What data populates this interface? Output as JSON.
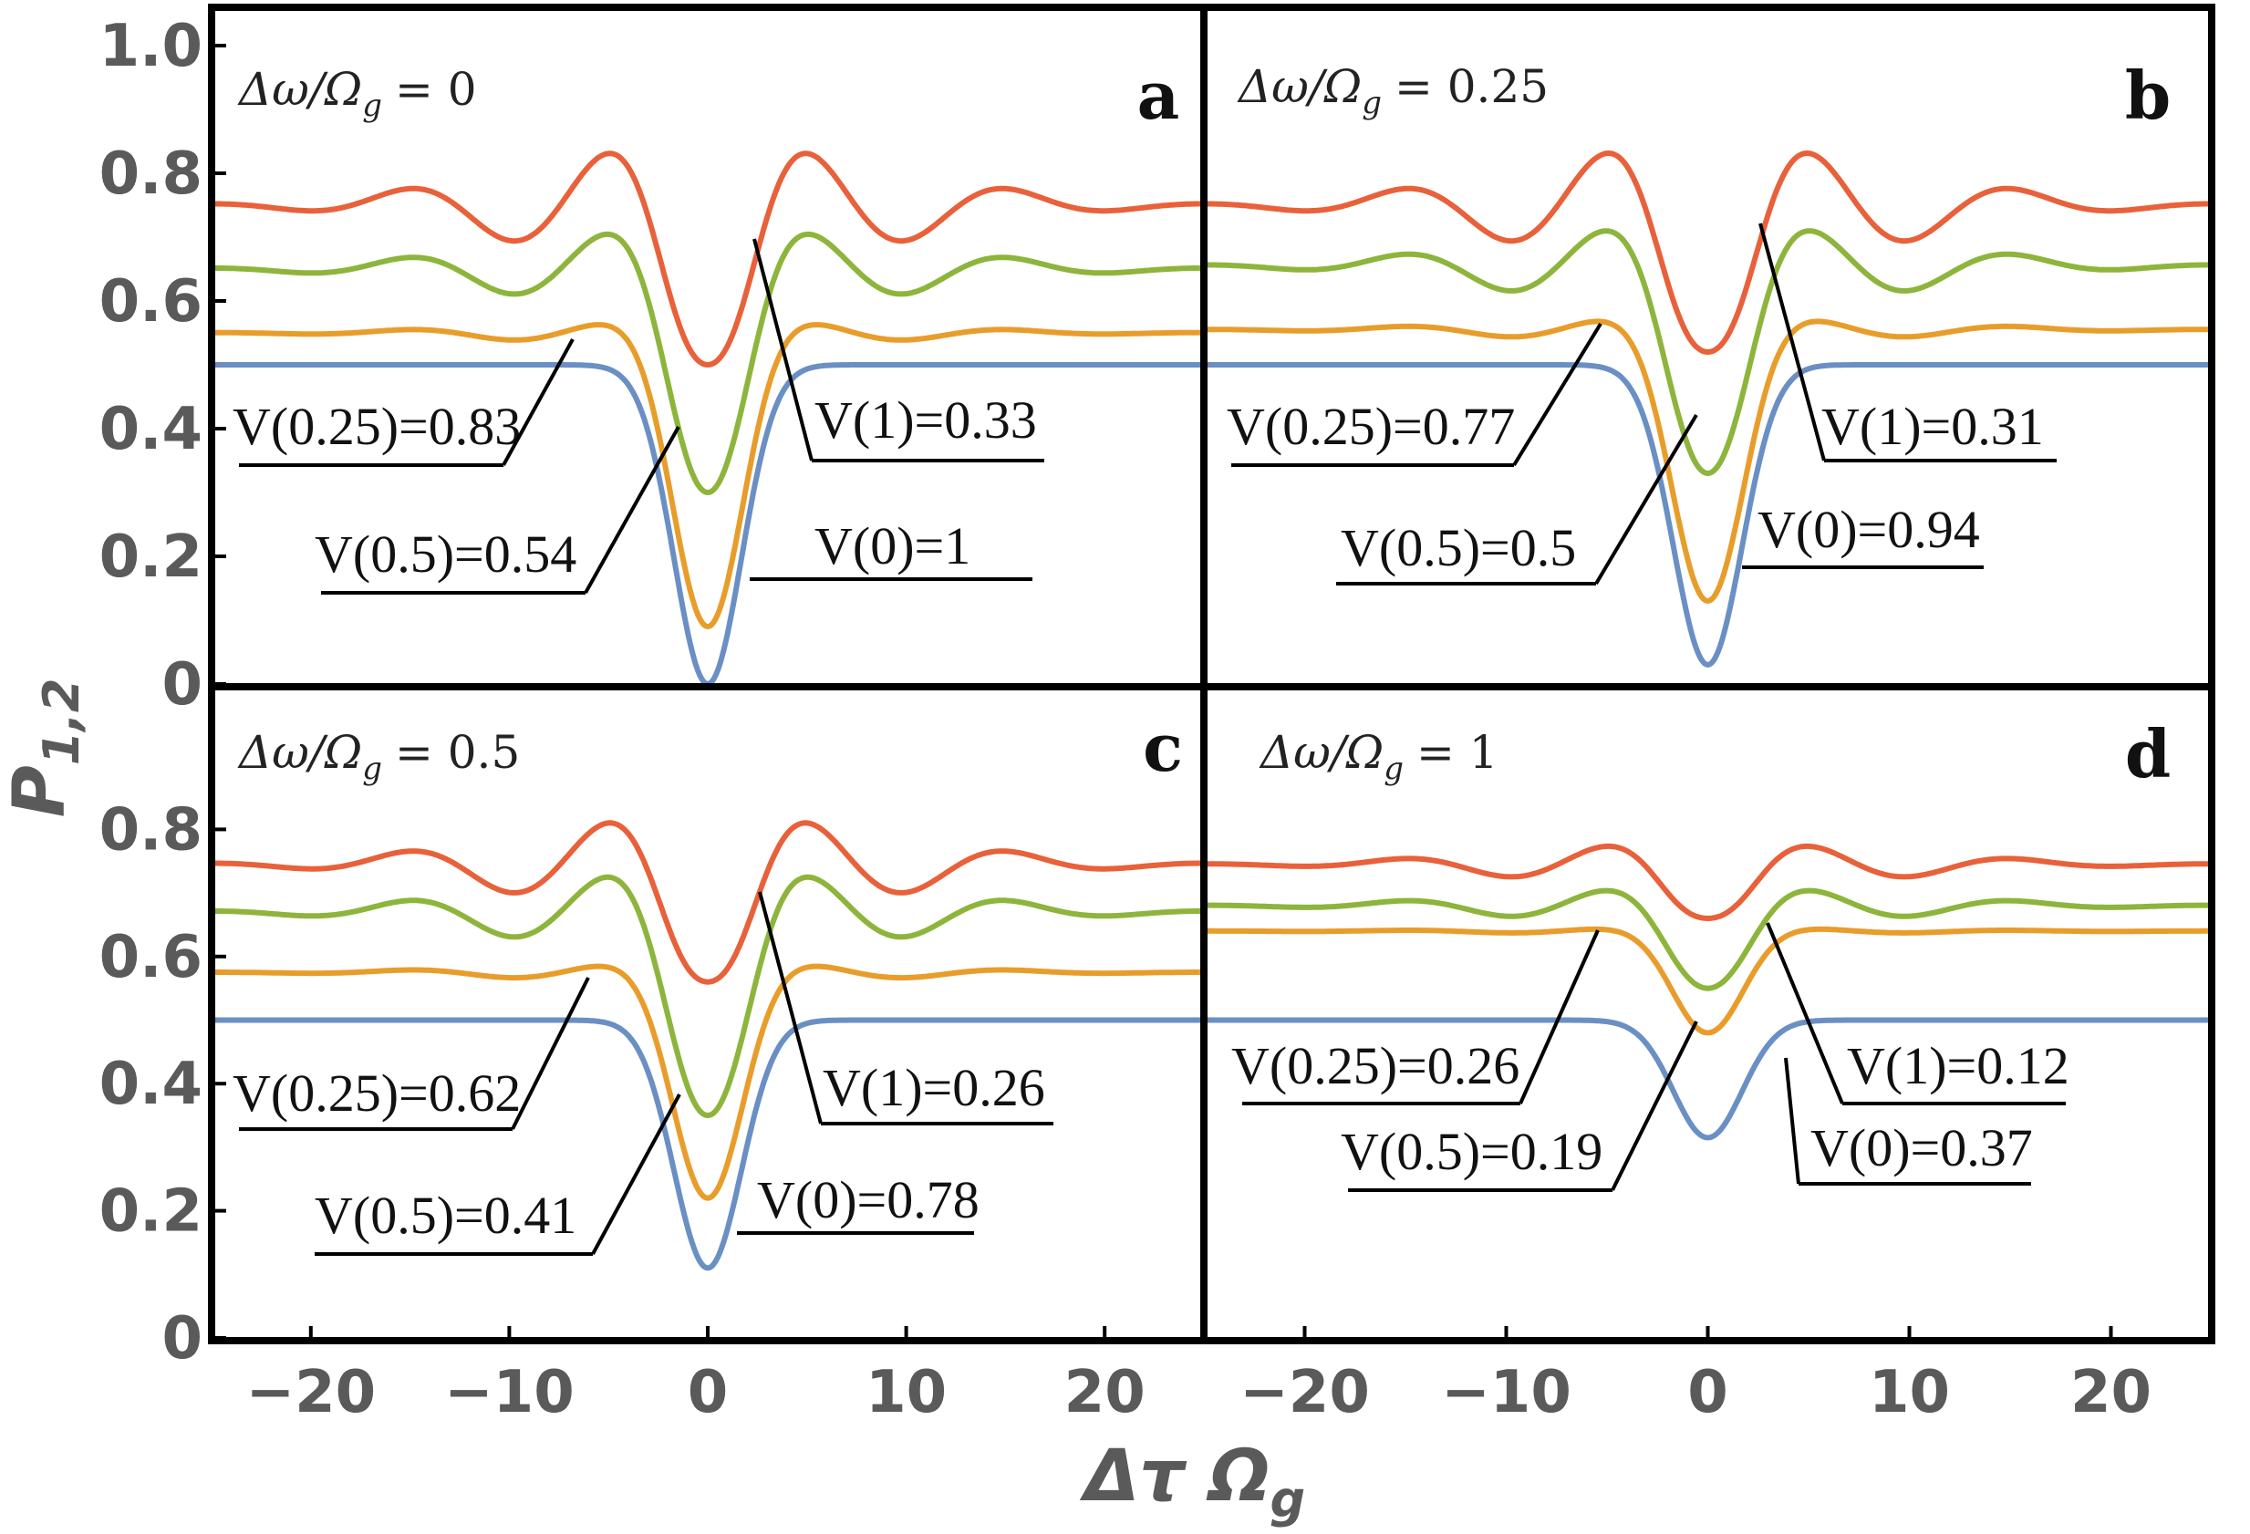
{
  "chart_data": {
    "type": "line",
    "layout": "2x2 panel grid",
    "y_axis_title": "P",
    "y_axis_subscript": "1,2",
    "x_axis_title": "Δτ Ω",
    "x_axis_subscript": "g",
    "xlim": [
      -25,
      25
    ],
    "ylim": [
      0,
      1.05
    ],
    "x_ticks": [
      -20,
      -10,
      0,
      10,
      20
    ],
    "x_tick_labels": [
      "−20",
      "−10",
      "0",
      "10",
      "20"
    ],
    "y_ticks_top": [
      0,
      0.2,
      0.4,
      0.6,
      0.8,
      1.0
    ],
    "y_tick_labels_top": [
      "0",
      "0.2",
      "0.4",
      "0.6",
      "0.8",
      "1.0"
    ],
    "y_ticks_bottom": [
      0,
      0.2,
      0.4,
      0.6,
      0.8
    ],
    "y_tick_labels_bottom": [
      "0",
      "0.2",
      "0.4",
      "0.6",
      "0.8"
    ],
    "series_colors": {
      "orange_red": "#e8613a",
      "green": "#8db53c",
      "orange": "#e89d2b",
      "blue": "#6a8fc4"
    },
    "panels": [
      {
        "letter": "a",
        "condition": "Δω/Ω",
        "condition_sub": "g",
        "condition_value": "= 0",
        "series": [
          {
            "name": "V(1)",
            "color": "#e8613a",
            "base": 0.75,
            "min": 0.5,
            "osc": 0.1
          },
          {
            "name": "V(0.5)",
            "color": "#8db53c",
            "base": 0.65,
            "min": 0.3,
            "osc": 0.07
          },
          {
            "name": "V(0.25)",
            "color": "#e89d2b",
            "base": 0.55,
            "min": 0.09,
            "osc": 0.02
          },
          {
            "name": "V(0)",
            "color": "#6a8fc4",
            "base": 0.5,
            "min": 0.0,
            "osc": 0.0
          }
        ],
        "labels": [
          {
            "text": "V(0.25)=0.83"
          },
          {
            "text": "V(0.5)=0.54"
          },
          {
            "text": "V(1)=0.33"
          },
          {
            "text": "V(0)=1"
          }
        ]
      },
      {
        "letter": "b",
        "condition": "Δω/Ω",
        "condition_sub": "g",
        "condition_value": "= 0.25",
        "series": [
          {
            "name": "V(1)",
            "color": "#e8613a",
            "base": 0.75,
            "min": 0.52,
            "osc": 0.1
          },
          {
            "name": "V(0.5)",
            "color": "#8db53c",
            "base": 0.655,
            "min": 0.33,
            "osc": 0.07
          },
          {
            "name": "V(0.25)",
            "color": "#e89d2b",
            "base": 0.555,
            "min": 0.13,
            "osc": 0.02
          },
          {
            "name": "V(0)",
            "color": "#6a8fc4",
            "base": 0.5,
            "min": 0.03,
            "osc": 0.0
          }
        ],
        "labels": [
          {
            "text": "V(0.25)=0.77"
          },
          {
            "text": "V(0.5)=0.5"
          },
          {
            "text": "V(1)=0.31"
          },
          {
            "text": "V(0)=0.94"
          }
        ]
      },
      {
        "letter": "c",
        "condition": "Δω/Ω",
        "condition_sub": "g",
        "condition_value": "= 0.5",
        "series": [
          {
            "name": "V(1)",
            "color": "#e8613a",
            "base": 0.745,
            "min": 0.56,
            "osc": 0.08
          },
          {
            "name": "V(0.5)",
            "color": "#8db53c",
            "base": 0.67,
            "min": 0.35,
            "osc": 0.07
          },
          {
            "name": "V(0.25)",
            "color": "#e89d2b",
            "base": 0.575,
            "min": 0.22,
            "osc": 0.015
          },
          {
            "name": "V(0)",
            "color": "#6a8fc4",
            "base": 0.5,
            "min": 0.11,
            "osc": 0.0
          }
        ],
        "labels": [
          {
            "text": "V(0.25)=0.62"
          },
          {
            "text": "V(0.5)=0.41"
          },
          {
            "text": "V(1)=0.26"
          },
          {
            "text": "V(0)=0.78"
          }
        ]
      },
      {
        "letter": "d",
        "condition": "Δω/Ω",
        "condition_sub": "g",
        "condition_value": "= 1",
        "series": [
          {
            "name": "V(1)",
            "color": "#e8613a",
            "base": 0.745,
            "min": 0.66,
            "osc": 0.035
          },
          {
            "name": "V(0.5)",
            "color": "#8db53c",
            "base": 0.68,
            "min": 0.55,
            "osc": 0.03
          },
          {
            "name": "V(0.25)",
            "color": "#e89d2b",
            "base": 0.64,
            "min": 0.48,
            "osc": 0.005
          },
          {
            "name": "V(0)",
            "color": "#6a8fc4",
            "base": 0.5,
            "min": 0.315,
            "osc": 0.0
          }
        ],
        "labels": [
          {
            "text": "V(0.25)=0.26"
          },
          {
            "text": "V(0.5)=0.19"
          },
          {
            "text": "V(1)=0.12"
          },
          {
            "text": "V(0)=0.37"
          }
        ]
      }
    ]
  }
}
